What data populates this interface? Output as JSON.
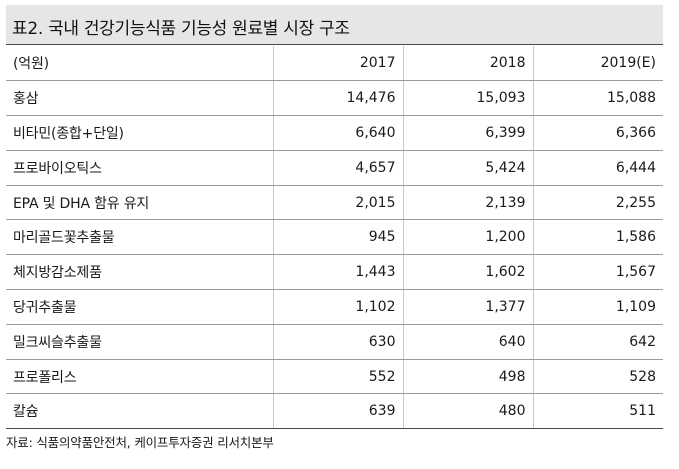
{
  "title": "표2. 국내 건강기능식품 기능성 원료별 시장 구조",
  "table": {
    "header": [
      "(억원)",
      "2017",
      "2018",
      "2019(E)"
    ],
    "rows": [
      [
        "홍삼",
        "14,476",
        "15,093",
        "15,088"
      ],
      [
        "비타민(종합+단일)",
        "6,640",
        "6,399",
        "6,366"
      ],
      [
        "프로바이오틱스",
        "4,657",
        "5,424",
        "6,444"
      ],
      [
        "EPA 및 DHA 함유 유지",
        "2,015",
        "2,139",
        "2,255"
      ],
      [
        "마리골드꽃추출물",
        "945",
        "1,200",
        "1,586"
      ],
      [
        "체지방감소제품",
        "1,443",
        "1,602",
        "1,567"
      ],
      [
        "당귀추출물",
        "1,102",
        "1,377",
        "1,109"
      ],
      [
        "밀크씨슬추출물",
        "630",
        "640",
        "642"
      ],
      [
        "프로폴리스",
        "552",
        "498",
        "528"
      ],
      [
        "칼슘",
        "639",
        "480",
        "511"
      ]
    ]
  },
  "source": "자료: 식품의약품안전처, 케이프투자증권 리서치본부",
  "colors": {
    "title_background": "#e6e6e6",
    "rule_dark": "#4a4a4a",
    "row_rule": "#9a9a9a"
  }
}
